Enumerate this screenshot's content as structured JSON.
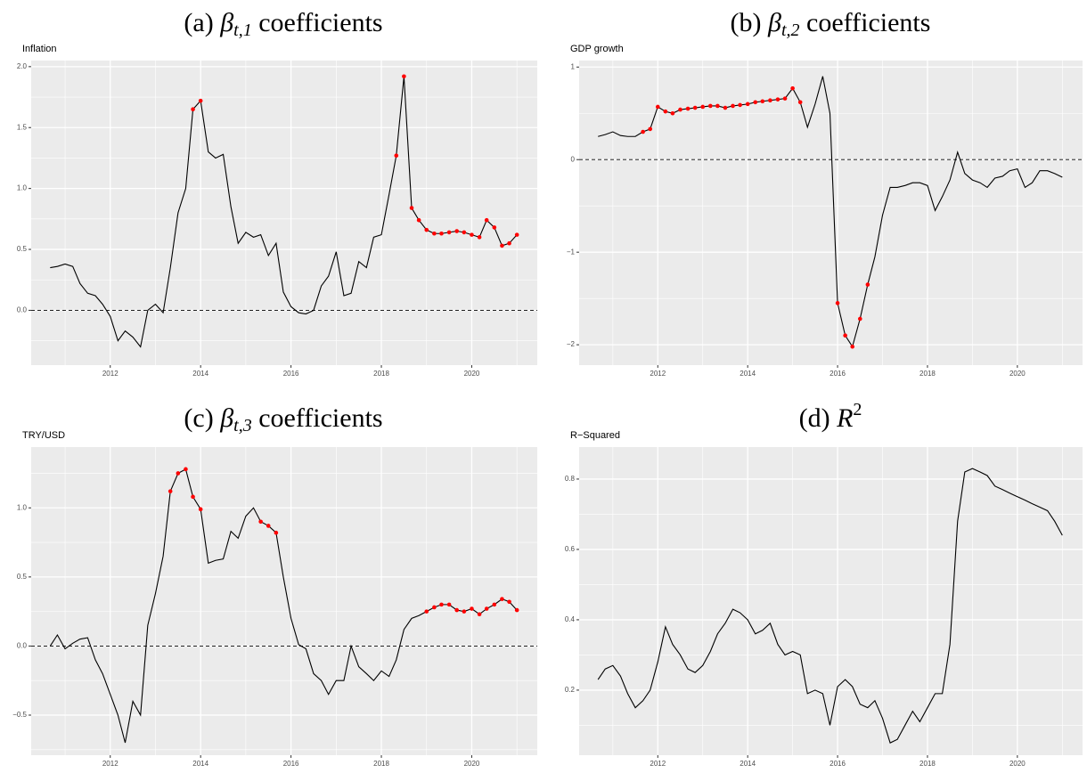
{
  "chart_data": [
    {
      "type": "line",
      "title": {
        "label": "(a)",
        "symbol": "β",
        "sub": "t,1",
        "text": "coefficients"
      },
      "subtitle": "Inflation",
      "x": [
        2010.67,
        2010.83,
        2011.0,
        2011.17,
        2011.33,
        2011.5,
        2011.67,
        2011.83,
        2012.0,
        2012.17,
        2012.33,
        2012.5,
        2012.67,
        2012.83,
        2013.0,
        2013.17,
        2013.33,
        2013.5,
        2013.67,
        2013.83,
        2014.0,
        2014.17,
        2014.33,
        2014.5,
        2014.67,
        2014.83,
        2015.0,
        2015.17,
        2015.33,
        2015.5,
        2015.67,
        2015.83,
        2016.0,
        2016.17,
        2016.33,
        2016.5,
        2016.67,
        2016.83,
        2017.0,
        2017.17,
        2017.33,
        2017.5,
        2017.67,
        2017.83,
        2018.0,
        2018.17,
        2018.33,
        2018.5,
        2018.67,
        2018.83,
        2019.0,
        2019.17,
        2019.33,
        2019.5,
        2019.67,
        2019.83,
        2020.0,
        2020.17,
        2020.33,
        2020.5,
        2020.67,
        2020.83,
        2021.0
      ],
      "series": [
        {
          "color": "#000000",
          "values": [
            0.35,
            0.36,
            0.38,
            0.36,
            0.22,
            0.14,
            0.12,
            0.05,
            -0.05,
            -0.25,
            -0.17,
            -0.22,
            -0.3,
            0.0,
            0.05,
            -0.02,
            0.35,
            0.8,
            1.0,
            1.65,
            1.72,
            1.3,
            1.25,
            1.28,
            0.85,
            0.55,
            0.64,
            0.6,
            0.62,
            0.45,
            0.55,
            0.15,
            0.03,
            -0.02,
            -0.03,
            0.0,
            0.2,
            0.28,
            0.48,
            0.12,
            0.14,
            0.4,
            0.35,
            0.6,
            0.62,
            0.95,
            1.27,
            1.92,
            0.84,
            0.74,
            0.66,
            0.63,
            0.63,
            0.64,
            0.65,
            0.64,
            0.62,
            0.6,
            0.74,
            0.68,
            0.53,
            0.55,
            0.62
          ]
        },
        {
          "color": "#ff0000",
          "marker": "point",
          "values": [
            null,
            null,
            null,
            null,
            null,
            null,
            null,
            null,
            null,
            null,
            null,
            null,
            null,
            null,
            null,
            null,
            null,
            null,
            null,
            1.65,
            1.72,
            null,
            null,
            null,
            null,
            null,
            null,
            null,
            null,
            null,
            null,
            null,
            null,
            null,
            null,
            null,
            null,
            null,
            null,
            null,
            null,
            null,
            null,
            null,
            null,
            null,
            1.27,
            1.92,
            0.84,
            0.74,
            0.66,
            0.63,
            0.63,
            0.64,
            0.65,
            0.64,
            0.62,
            0.6,
            0.74,
            0.68,
            0.53,
            0.55,
            0.62
          ]
        }
      ],
      "xlim": [
        2010.25,
        2021.45
      ],
      "xticks": [
        2012,
        2014,
        2016,
        2018,
        2020
      ],
      "ylim": [
        -0.45,
        2.05
      ],
      "yticks": [
        {
          "value": 0,
          "label": "0.0"
        },
        0.5,
        {
          "value": 1,
          "label": "1.0"
        },
        1.5,
        {
          "value": 2,
          "label": "2.0"
        }
      ],
      "hline": 0,
      "grid": true
    },
    {
      "type": "line",
      "title": {
        "label": "(b)",
        "symbol": "β",
        "sub": "t,2",
        "text": "coefficients"
      },
      "subtitle": "GDP growth",
      "x": [
        2010.67,
        2010.83,
        2011.0,
        2011.17,
        2011.33,
        2011.5,
        2011.67,
        2011.83,
        2012.0,
        2012.17,
        2012.33,
        2012.5,
        2012.67,
        2012.83,
        2013.0,
        2013.17,
        2013.33,
        2013.5,
        2013.67,
        2013.83,
        2014.0,
        2014.17,
        2014.33,
        2014.5,
        2014.67,
        2014.83,
        2015.0,
        2015.17,
        2015.33,
        2015.5,
        2015.67,
        2015.83,
        2016.0,
        2016.17,
        2016.33,
        2016.5,
        2016.67,
        2016.83,
        2017.0,
        2017.17,
        2017.33,
        2017.5,
        2017.67,
        2017.83,
        2018.0,
        2018.17,
        2018.33,
        2018.5,
        2018.67,
        2018.83,
        2019.0,
        2019.17,
        2019.33,
        2019.5,
        2019.67,
        2019.83,
        2020.0,
        2020.17,
        2020.33,
        2020.5,
        2020.67,
        2020.83,
        2021.0
      ],
      "series": [
        {
          "color": "#000000",
          "values": [
            0.25,
            0.27,
            0.3,
            0.26,
            0.25,
            0.25,
            0.3,
            0.33,
            0.57,
            0.52,
            0.5,
            0.54,
            0.55,
            0.56,
            0.57,
            0.58,
            0.58,
            0.56,
            0.58,
            0.59,
            0.6,
            0.62,
            0.63,
            0.64,
            0.65,
            0.66,
            0.77,
            0.62,
            0.35,
            0.6,
            0.9,
            0.5,
            -1.55,
            -1.9,
            -2.02,
            -1.72,
            -1.35,
            -1.05,
            -0.6,
            -0.3,
            -0.3,
            -0.28,
            -0.25,
            -0.25,
            -0.28,
            -0.55,
            -0.4,
            -0.22,
            0.08,
            -0.15,
            -0.22,
            -0.25,
            -0.3,
            -0.2,
            -0.18,
            -0.12,
            -0.1,
            -0.3,
            -0.25,
            -0.12,
            -0.12,
            -0.15,
            -0.19
          ]
        },
        {
          "color": "#ff0000",
          "marker": "point",
          "values": [
            null,
            null,
            null,
            null,
            null,
            null,
            0.3,
            0.33,
            0.57,
            0.52,
            0.5,
            0.54,
            0.55,
            0.56,
            0.57,
            0.58,
            0.58,
            0.56,
            0.58,
            0.59,
            0.6,
            0.62,
            0.63,
            0.64,
            0.65,
            0.66,
            0.77,
            0.62,
            null,
            null,
            null,
            null,
            -1.55,
            -1.9,
            -2.02,
            -1.72,
            -1.35,
            null,
            null,
            null,
            null,
            null,
            null,
            null,
            null,
            null,
            null,
            null,
            null,
            null,
            null,
            null,
            null,
            null,
            null,
            null,
            null,
            null,
            null,
            null,
            null,
            null,
            null
          ]
        }
      ],
      "xlim": [
        2010.25,
        2021.45
      ],
      "xticks": [
        2012,
        2014,
        2016,
        2018,
        2020
      ],
      "ylim": [
        -2.22,
        1.07
      ],
      "yticks": [
        {
          "value": -2,
          "label": "−2"
        },
        {
          "value": -1,
          "label": "−1"
        },
        0,
        1
      ],
      "hline": 0,
      "grid": true
    },
    {
      "type": "line",
      "title": {
        "label": "(c)",
        "symbol": "β",
        "sub": "t,3",
        "text": "coefficients"
      },
      "subtitle": "TRY/USD",
      "x": [
        2010.67,
        2010.83,
        2011.0,
        2011.17,
        2011.33,
        2011.5,
        2011.67,
        2011.83,
        2012.0,
        2012.17,
        2012.33,
        2012.5,
        2012.67,
        2012.83,
        2013.0,
        2013.17,
        2013.33,
        2013.5,
        2013.67,
        2013.83,
        2014.0,
        2014.17,
        2014.33,
        2014.5,
        2014.67,
        2014.83,
        2015.0,
        2015.17,
        2015.33,
        2015.5,
        2015.67,
        2015.83,
        2016.0,
        2016.17,
        2016.33,
        2016.5,
        2016.67,
        2016.83,
        2017.0,
        2017.17,
        2017.33,
        2017.5,
        2017.67,
        2017.83,
        2018.0,
        2018.17,
        2018.33,
        2018.5,
        2018.67,
        2018.83,
        2019.0,
        2019.17,
        2019.33,
        2019.5,
        2019.67,
        2019.83,
        2020.0,
        2020.17,
        2020.33,
        2020.5,
        2020.67,
        2020.83,
        2021.0
      ],
      "series": [
        {
          "color": "#000000",
          "values": [
            0.0,
            0.08,
            -0.02,
            0.02,
            0.05,
            0.06,
            -0.1,
            -0.2,
            -0.35,
            -0.5,
            -0.7,
            -0.4,
            -0.5,
            0.15,
            0.38,
            0.65,
            1.12,
            1.25,
            1.28,
            1.08,
            0.99,
            0.6,
            0.62,
            0.63,
            0.83,
            0.78,
            0.94,
            1.0,
            0.9,
            0.87,
            0.82,
            0.5,
            0.2,
            0.01,
            -0.02,
            -0.2,
            -0.25,
            -0.35,
            -0.25,
            -0.25,
            0.0,
            -0.15,
            -0.2,
            -0.25,
            -0.18,
            -0.22,
            -0.1,
            0.12,
            0.2,
            0.22,
            0.25,
            0.28,
            0.3,
            0.3,
            0.26,
            0.25,
            0.27,
            0.23,
            0.27,
            0.3,
            0.34,
            0.32,
            0.26
          ]
        },
        {
          "color": "#ff0000",
          "marker": "point",
          "values": [
            null,
            null,
            null,
            null,
            null,
            null,
            null,
            null,
            null,
            null,
            null,
            null,
            null,
            null,
            null,
            null,
            1.12,
            1.25,
            1.28,
            1.08,
            0.99,
            null,
            null,
            null,
            null,
            null,
            null,
            null,
            0.9,
            0.87,
            0.82,
            null,
            null,
            null,
            null,
            null,
            null,
            null,
            null,
            null,
            null,
            null,
            null,
            null,
            null,
            null,
            null,
            null,
            null,
            null,
            0.25,
            0.28,
            0.3,
            0.3,
            0.26,
            0.25,
            0.27,
            0.23,
            0.27,
            0.3,
            0.34,
            0.32,
            0.26
          ]
        }
      ],
      "xlim": [
        2010.25,
        2021.45
      ],
      "xticks": [
        2012,
        2014,
        2016,
        2018,
        2020
      ],
      "ylim": [
        -0.79,
        1.44
      ],
      "yticks": [
        {
          "value": -0.5,
          "label": "−0.5"
        },
        {
          "value": 0,
          "label": "0.0"
        },
        0.5,
        {
          "value": 1,
          "label": "1.0"
        }
      ],
      "hline": 0,
      "grid": true
    },
    {
      "type": "line",
      "title": {
        "label": "(d)",
        "symbol": "R",
        "sup": "2"
      },
      "subtitle": "R−Squared",
      "x": [
        2010.67,
        2010.83,
        2011.0,
        2011.17,
        2011.33,
        2011.5,
        2011.67,
        2011.83,
        2012.0,
        2012.17,
        2012.33,
        2012.5,
        2012.67,
        2012.83,
        2013.0,
        2013.17,
        2013.33,
        2013.5,
        2013.67,
        2013.83,
        2014.0,
        2014.17,
        2014.33,
        2014.5,
        2014.67,
        2014.83,
        2015.0,
        2015.17,
        2015.33,
        2015.5,
        2015.67,
        2015.83,
        2016.0,
        2016.17,
        2016.33,
        2016.5,
        2016.67,
        2016.83,
        2017.0,
        2017.17,
        2017.33,
        2017.5,
        2017.67,
        2017.83,
        2018.0,
        2018.17,
        2018.33,
        2018.5,
        2018.67,
        2018.83,
        2019.0,
        2019.17,
        2019.33,
        2019.5,
        2019.67,
        2019.83,
        2020.0,
        2020.17,
        2020.33,
        2020.5,
        2020.67,
        2020.83,
        2021.0
      ],
      "series": [
        {
          "color": "#000000",
          "values": [
            0.23,
            0.26,
            0.27,
            0.24,
            0.19,
            0.15,
            0.17,
            0.2,
            0.28,
            0.38,
            0.33,
            0.3,
            0.26,
            0.25,
            0.27,
            0.31,
            0.36,
            0.39,
            0.43,
            0.42,
            0.4,
            0.36,
            0.37,
            0.39,
            0.33,
            0.3,
            0.31,
            0.3,
            0.19,
            0.2,
            0.19,
            0.1,
            0.21,
            0.23,
            0.21,
            0.16,
            0.15,
            0.17,
            0.12,
            0.05,
            0.06,
            0.1,
            0.14,
            0.11,
            0.15,
            0.19,
            0.19,
            0.33,
            0.68,
            0.82,
            0.83,
            0.82,
            0.81,
            0.78,
            0.77,
            0.76,
            0.75,
            0.74,
            0.73,
            0.72,
            0.71,
            0.68,
            0.64
          ]
        }
      ],
      "xlim": [
        2010.25,
        2021.45
      ],
      "xticks": [
        2012,
        2014,
        2016,
        2018,
        2020
      ],
      "ylim": [
        0.015,
        0.891
      ],
      "yticks": [
        0.2,
        0.4,
        0.6,
        0.8
      ],
      "grid": true
    }
  ]
}
